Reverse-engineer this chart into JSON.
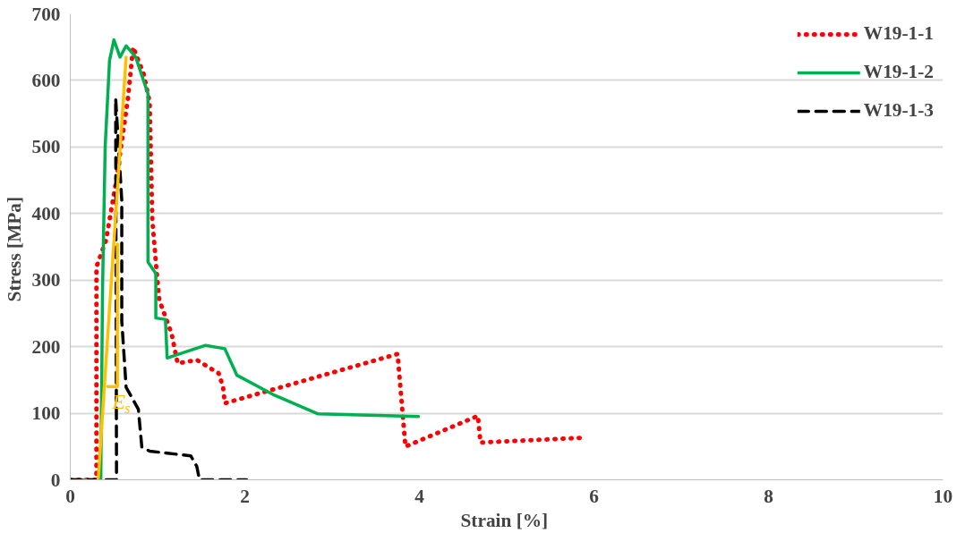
{
  "chart_data": {
    "type": "line",
    "xlabel": "Strain  [%]",
    "ylabel": "Stress  [MPa]",
    "xlim": [
      0,
      10
    ],
    "ylim": [
      0,
      700
    ],
    "xticks": [
      0,
      2,
      4,
      6,
      8,
      10
    ],
    "yticks": [
      0,
      100,
      200,
      300,
      400,
      500,
      600,
      700
    ],
    "grid": "y",
    "legend": "top right",
    "marker": "none",
    "annotations": [
      "E$_{s}$"
    ],
    "series": [
      {
        "name": "W19-1-1",
        "color": "#ff0000",
        "line_style": "dotted",
        "x": [
          0,
          0.3,
          0.3,
          0.41,
          0.52,
          0.66,
          0.72,
          0.84,
          0.91,
          0.94,
          0.99,
          1.02,
          1.16,
          1.23,
          1.45,
          1.7,
          1.75,
          1.77,
          3.75,
          3.84,
          4.67,
          4.7,
          5.85
        ],
        "values": [
          0,
          0,
          320,
          360,
          444,
          572,
          650,
          610,
          567,
          390,
          312,
          270,
          220,
          175,
          180,
          160,
          140,
          115,
          189,
          50,
          96,
          56,
          63
        ]
      },
      {
        "name": "W19-1-2",
        "color": "#00b050",
        "line_style": "solid",
        "x": [
          0,
          0.35,
          0.37,
          0.4,
          0.45,
          0.5,
          0.57,
          0.64,
          0.75,
          0.89,
          0.89,
          0.98,
          0.98,
          1.09,
          1.11,
          1.27,
          1.55,
          1.77,
          1.91,
          2.34,
          2.84,
          3.99
        ],
        "values": [
          0,
          0,
          288,
          501,
          630,
          661,
          635,
          652,
          635,
          580,
          327,
          310,
          243,
          241,
          183,
          190,
          202,
          197,
          157,
          127,
          99,
          95
        ]
      },
      {
        "name": "W19-1-3",
        "color": "#000000",
        "line_style": "dashed",
        "x": [
          0,
          0.5,
          0.53,
          0.52,
          0.59,
          0.59,
          0.64,
          0.78,
          0.82,
          0.91,
          1.38,
          1.45,
          1.48,
          2.02
        ],
        "values": [
          0,
          0,
          0,
          573,
          420,
          239,
          139,
          106,
          49,
          43,
          36,
          20,
          0,
          0
        ]
      },
      {
        "color": "#ffc000",
        "line_style": "solid",
        "x": [
          0.32,
          0.64,
          null,
          0.43,
          0.54,
          0.54
        ],
        "values": [
          0,
          635,
          null,
          140,
          140,
          354
        ]
      }
    ]
  }
}
